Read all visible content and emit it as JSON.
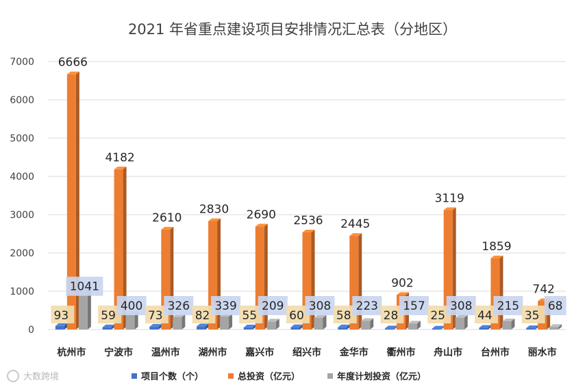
{
  "chart_data": {
    "type": "bar",
    "title": "2021 年省重点建设项目安排情况汇总表（分地区）",
    "categories": [
      "杭州市",
      "宁波市",
      "温州市",
      "湖州市",
      "嘉兴市",
      "绍兴市",
      "金华市",
      "衢州市",
      "舟山市",
      "台州市",
      "丽水市"
    ],
    "series": [
      {
        "name": "项目个数（个）",
        "color": "#4472c4",
        "values": [
          93,
          59,
          73,
          82,
          55,
          60,
          58,
          28,
          25,
          44,
          35
        ]
      },
      {
        "name": "总投资（亿元）",
        "color": "#ed7d31",
        "values": [
          6666,
          4182,
          2610,
          2830,
          2690,
          2536,
          2445,
          902,
          3119,
          1859,
          742
        ]
      },
      {
        "name": "年度计划投资（亿元）",
        "color": "#a5a5a5",
        "values": [
          1041,
          400,
          326,
          339,
          209,
          308,
          223,
          157,
          308,
          215,
          68
        ]
      }
    ],
    "y_ticks": [
      "0",
      "1000",
      "2000",
      "3000",
      "4000",
      "5000",
      "6000",
      "7000"
    ],
    "ylim": [
      0,
      7000
    ],
    "grid": true,
    "legend_position": "bottom"
  },
  "watermark": "大数跨境"
}
